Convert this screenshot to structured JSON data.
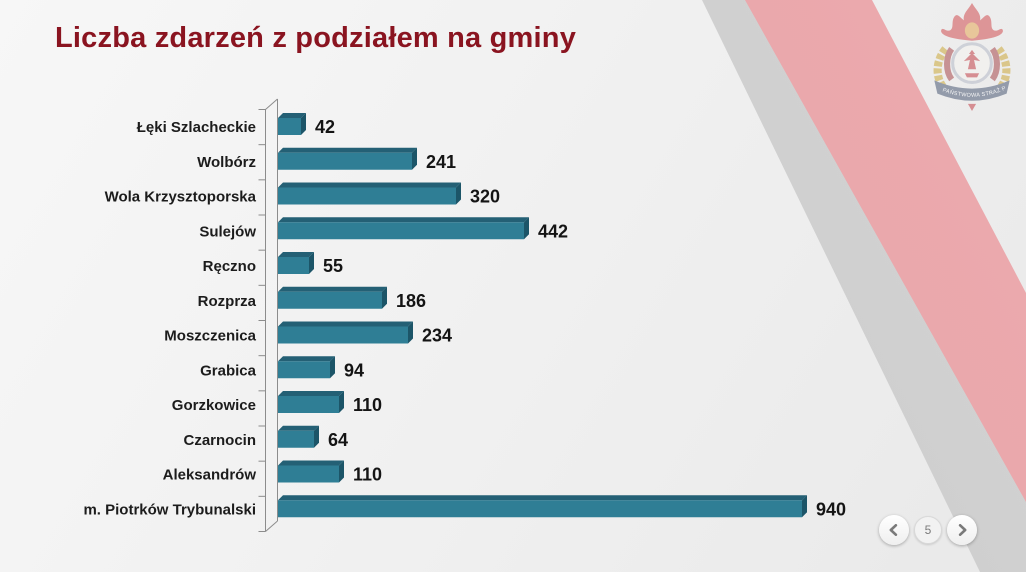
{
  "header": {
    "title": "Liczba zdarzeń z podziałem na gminy"
  },
  "chart_data": {
    "type": "bar",
    "orientation": "horizontal",
    "title": "Liczba zdarzeń z podziałem na gminy",
    "categories": [
      "Łęki Szlacheckie",
      "Wolbórz",
      "Wola Krzysztoporska",
      "Sulejów",
      "Ręczno",
      "Rozprza",
      "Moszczenica",
      "Grabica",
      "Gorzkowice",
      "Czarnocin",
      "Aleksandrów",
      "m. Piotrków Trybunalski"
    ],
    "values": [
      42,
      241,
      320,
      442,
      55,
      186,
      234,
      94,
      110,
      64,
      110,
      940
    ],
    "xlim": [
      0,
      940
    ],
    "grid": false,
    "legend": "none",
    "value_labels_shown": true,
    "style_3d": true
  },
  "colors": {
    "title": "#8a1420",
    "bar_front": "#2f7e95",
    "bar_top": "#24607587",
    "bar_top_solid": "#246075",
    "bar_side": "#1c5568",
    "axis": "#8c8c8c",
    "value_label": "#141414",
    "category_label": "#1c1c1c",
    "accent_band": "#e7a0a5"
  },
  "pagination": {
    "page": "5"
  },
  "logo": {
    "name": "panstwowa-straz-pozarna-emblem",
    "band_text": "PAŃSTWOWA STRAŻ POŻARNA"
  }
}
